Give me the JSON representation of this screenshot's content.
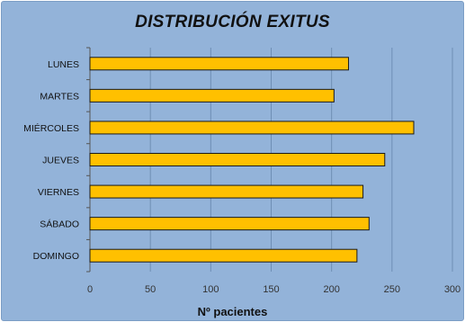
{
  "chart_data": {
    "type": "bar",
    "orientation": "horizontal",
    "title": "DISTRIBUCIÓN EXITUS",
    "xlabel": "Nº pacientes",
    "ylabel": "",
    "categories": [
      "LUNES",
      "MARTES",
      "MIÉRCOLES",
      "JUEVES",
      "VIERNES",
      "SÁBADO",
      "DOMINGO"
    ],
    "values": [
      214,
      202,
      268,
      244,
      226,
      231,
      221
    ],
    "xlim": [
      0,
      300
    ],
    "xticks": [
      "0",
      "50",
      "100",
      "150",
      "200",
      "250",
      "300"
    ],
    "grid": "vertical",
    "legend": "none",
    "colors": {
      "background": "#93b3d9",
      "bar_fill": "#ffc000",
      "bar_edge": "#1a1a1a",
      "grid": "#6f8fb5"
    }
  }
}
